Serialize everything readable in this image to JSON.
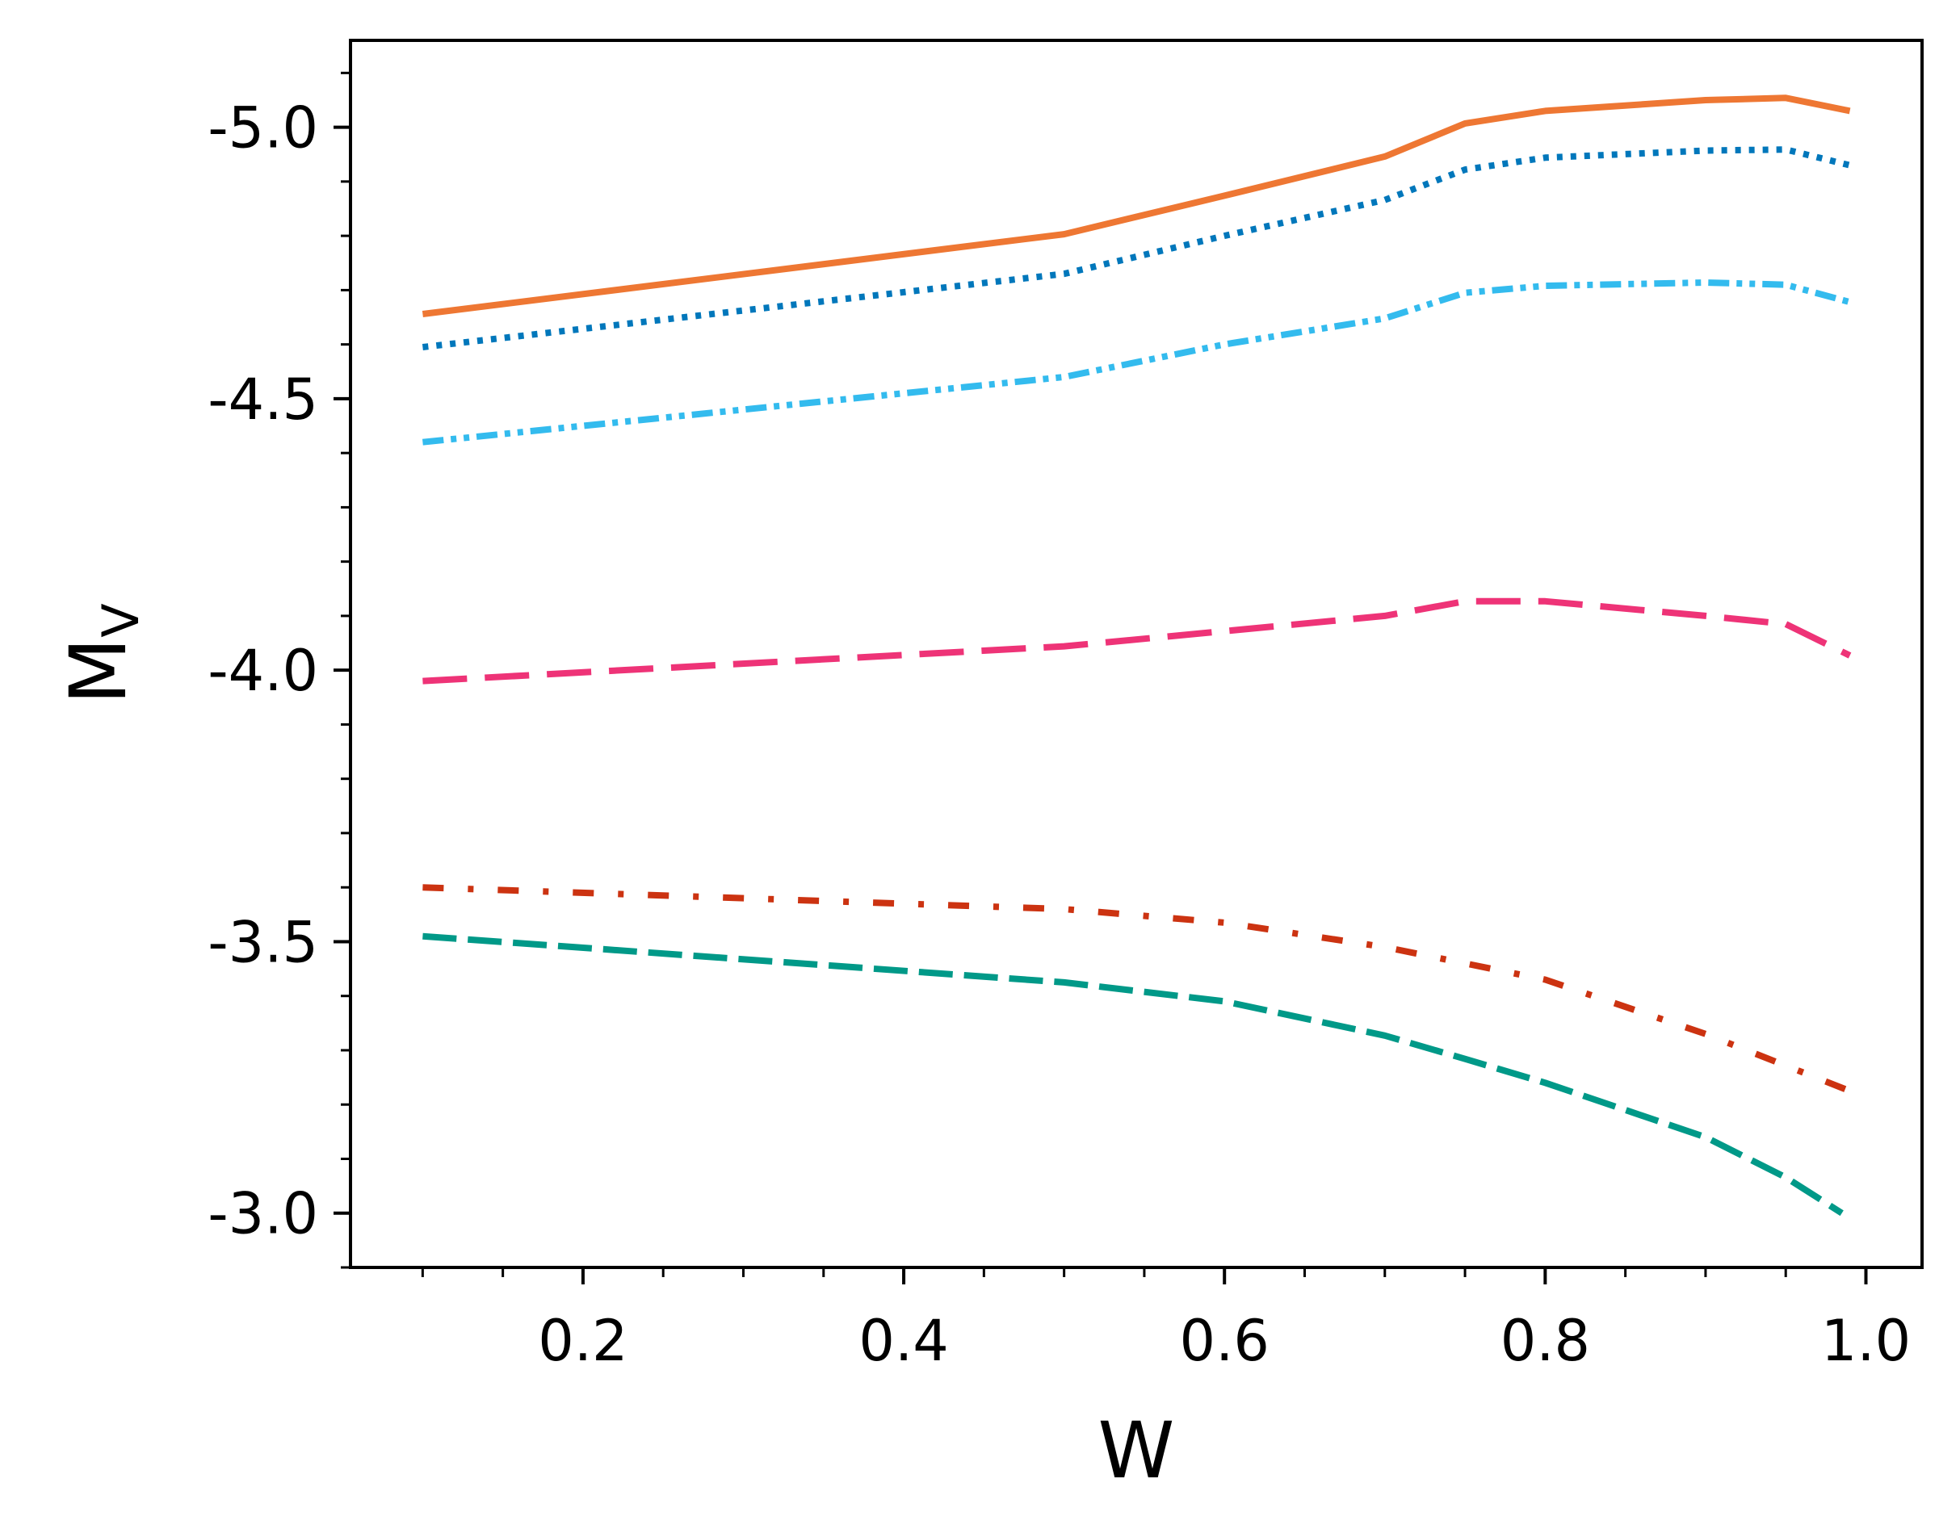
{
  "chart_data": {
    "type": "line",
    "title": "",
    "xlabel": "W",
    "ylabel": "M",
    "ylabel_subscript": "V",
    "xlim": [
      0.055,
      1.035
    ],
    "ylim": [
      -2.9,
      -5.16
    ],
    "y_inverted": true,
    "grid": false,
    "legend": "none",
    "x_ticks": [
      0.2,
      0.4,
      0.6,
      0.8,
      1.0
    ],
    "x_tick_labels": [
      "0.2",
      "0.4",
      "0.6",
      "0.8",
      "1.0"
    ],
    "x_minor_ticks": [
      0.1,
      0.15,
      0.25,
      0.3,
      0.35,
      0.45,
      0.5,
      0.55,
      0.65,
      0.7,
      0.75,
      0.85,
      0.9,
      0.95
    ],
    "y_ticks": [
      -5.0,
      -4.5,
      -4.0,
      -3.5,
      -3.0
    ],
    "y_tick_labels": [
      "-5.0",
      "-4.5",
      "-4.0",
      "-3.5",
      "-3.0"
    ],
    "y_minor_ticks": [
      -5.1,
      -4.9,
      -4.8,
      -4.7,
      -4.6,
      -4.4,
      -4.3,
      -4.2,
      -4.1,
      -3.9,
      -3.8,
      -3.7,
      -3.6,
      -3.4,
      -3.3,
      -3.2,
      -3.1,
      -2.9
    ],
    "series": [
      {
        "name": "solid-orange",
        "color": "#EE7733",
        "style": "solid",
        "x": [
          0.1,
          0.5,
          0.6,
          0.7,
          0.75,
          0.8,
          0.9,
          0.95,
          0.99
        ],
        "y": [
          -4.656,
          -4.803,
          -4.874,
          -4.946,
          -5.007,
          -5.03,
          -5.05,
          -5.054,
          -5.03
        ]
      },
      {
        "name": "dotted-blue",
        "color": "#0077BB",
        "style": "dotted",
        "x": [
          0.1,
          0.5,
          0.6,
          0.7,
          0.75,
          0.8,
          0.9,
          0.95,
          0.99
        ],
        "y": [
          -4.595,
          -4.73,
          -4.8,
          -4.866,
          -4.922,
          -4.944,
          -4.957,
          -4.959,
          -4.93
        ]
      },
      {
        "name": "dash-dot-dot-cyan",
        "color": "#33BBEE",
        "style": "dashdotdot",
        "x": [
          0.1,
          0.5,
          0.6,
          0.7,
          0.75,
          0.8,
          0.9,
          0.95,
          0.99
        ],
        "y": [
          -4.42,
          -4.54,
          -4.6,
          -4.648,
          -4.695,
          -4.708,
          -4.714,
          -4.71,
          -4.678
        ]
      },
      {
        "name": "long-dash-magenta",
        "color": "#EE3377",
        "style": "longdash",
        "x": [
          0.1,
          0.5,
          0.6,
          0.7,
          0.75,
          0.8,
          0.9,
          0.95,
          0.99
        ],
        "y": [
          -3.98,
          -4.044,
          -4.072,
          -4.1,
          -4.127,
          -4.127,
          -4.1,
          -4.085,
          -4.027
        ]
      },
      {
        "name": "dash-dot-red",
        "color": "#CC3311",
        "style": "dashdot",
        "x": [
          0.1,
          0.5,
          0.6,
          0.7,
          0.8,
          0.9,
          0.99
        ],
        "y": [
          -3.6,
          -3.56,
          -3.535,
          -3.49,
          -3.43,
          -3.33,
          -3.225
        ]
      },
      {
        "name": "dashed-teal",
        "color": "#009988",
        "style": "dashed",
        "x": [
          0.1,
          0.5,
          0.6,
          0.7,
          0.75,
          0.8,
          0.9,
          0.95,
          0.985
        ],
        "y": [
          -3.51,
          -3.425,
          -3.39,
          -3.327,
          -3.284,
          -3.24,
          -3.14,
          -3.066,
          -3.0
        ]
      }
    ]
  }
}
